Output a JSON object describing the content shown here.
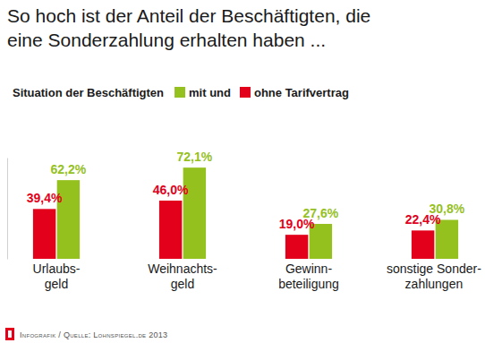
{
  "chart_data": {
    "type": "bar",
    "title": "So hoch ist der Anteil der Beschäftigten, die\neine Sonderzahlung erhalten haben ...",
    "subtitle": "Situation der Beschäftigten",
    "categories": [
      "Urlaubs-\ngeld",
      "Weihnachts-\ngeld",
      "Gewinn-\nbeteiligung",
      "sonstige Sonder-\nzahlungen"
    ],
    "series": [
      {
        "name": "mit und",
        "color": "#95c11f",
        "values": [
          62.2,
          72.1,
          27.6,
          30.8
        ],
        "value_labels": [
          "62,2%",
          "72,1%",
          "27,6%",
          "30,8%"
        ]
      },
      {
        "name": "ohne Tarifvertrag",
        "color": "#e2001a",
        "values": [
          39.4,
          46.0,
          19.0,
          22.4
        ],
        "value_labels": [
          "39,4%",
          "46,0%",
          "19,0%",
          "22,4%"
        ]
      }
    ],
    "ylim": [
      0,
      80
    ],
    "tick_labels": false,
    "data_labels": true,
    "legend": "top-left",
    "annotations": [
      "Infografik / Quelle: Lohnspiegel.de 2013"
    ]
  }
}
